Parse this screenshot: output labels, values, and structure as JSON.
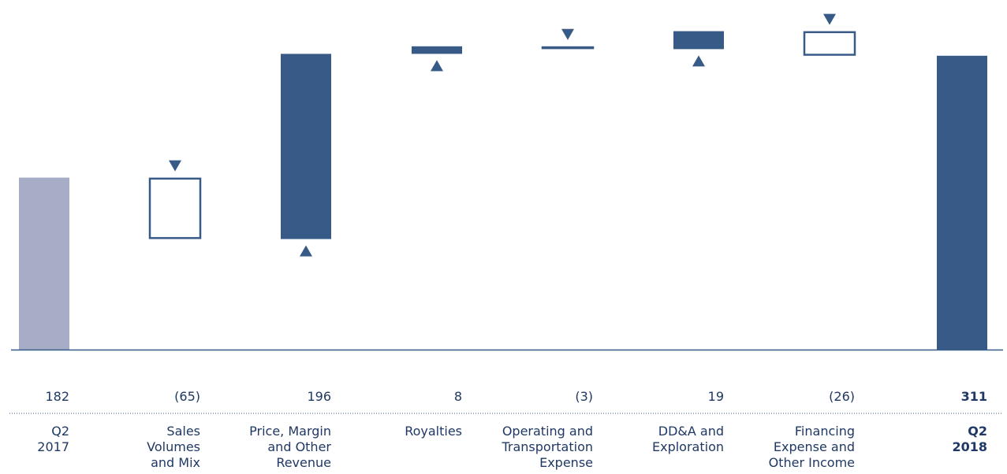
{
  "chart_data": {
    "type": "waterfall",
    "colors": {
      "start": "#a7adc6",
      "increase": "#375a87",
      "decrease_outline": "#375a87",
      "axis": "#375a87",
      "text": "#1f3864"
    },
    "categories": [
      {
        "label": "Q2\n2017",
        "display": "182",
        "value": 182,
        "kind": "start",
        "bold": false
      },
      {
        "label": "Sales\nVolumes\nand Mix",
        "display": "(65)",
        "value": -65,
        "kind": "decrease",
        "bold": false
      },
      {
        "label": "Price, Margin\nand Other\nRevenue",
        "display": "196",
        "value": 196,
        "kind": "increase",
        "bold": false
      },
      {
        "label": "Royalties",
        "display": "8",
        "value": 8,
        "kind": "increase",
        "bold": false
      },
      {
        "label": "Operating and\nTransportation\nExpense",
        "display": "(3)",
        "value": -3,
        "kind": "decrease",
        "bold": false
      },
      {
        "label": "DD&A and\nExploration",
        "display": "19",
        "value": 19,
        "kind": "increase",
        "bold": false
      },
      {
        "label": "Financing\nExpense and\nOther Income",
        "display": "(26)",
        "value": -26,
        "kind": "decrease",
        "bold": false
      },
      {
        "label": "Q2\n2018",
        "display": "311",
        "value": 311,
        "kind": "total",
        "bold": true
      }
    ]
  }
}
